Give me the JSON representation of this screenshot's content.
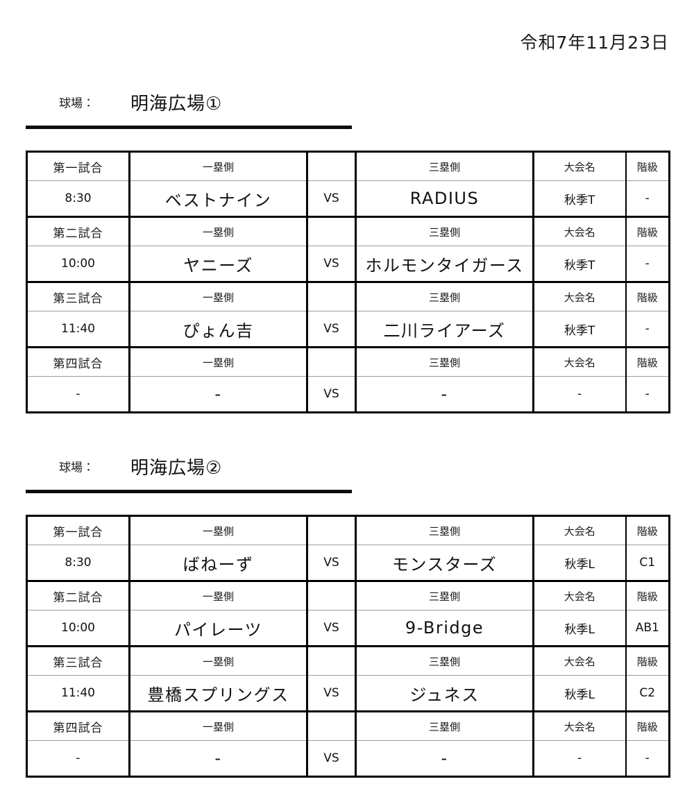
{
  "date": "令和7年11月23日",
  "venue_label": "球場：",
  "vs_label": "VS",
  "headers": {
    "first_base": "一塁側",
    "third_base": "三塁側",
    "tournament": "大会名",
    "class_name": "階級"
  },
  "venues": [
    {
      "name": "明海広場①",
      "games": [
        {
          "game_label": "第一試合",
          "time": "8:30",
          "first_base_team": "ベストナイン",
          "third_base_team": "RADIUS",
          "tournament": "秋季T",
          "class_name": "-"
        },
        {
          "game_label": "第二試合",
          "time": "10:00",
          "first_base_team": "ヤニーズ",
          "third_base_team": "ホルモンタイガース",
          "tournament": "秋季T",
          "class_name": "-"
        },
        {
          "game_label": "第三試合",
          "time": "11:40",
          "first_base_team": "ぴょん吉",
          "third_base_team": "二川ライアーズ",
          "tournament": "秋季T",
          "class_name": "-"
        },
        {
          "game_label": "第四試合",
          "time": "-",
          "first_base_team": "-",
          "third_base_team": "-",
          "tournament": "-",
          "class_name": "-"
        }
      ]
    },
    {
      "name": "明海広場②",
      "games": [
        {
          "game_label": "第一試合",
          "time": "8:30",
          "first_base_team": "ばねーず",
          "third_base_team": "モンスターズ",
          "tournament": "秋季L",
          "class_name": "C1"
        },
        {
          "game_label": "第二試合",
          "time": "10:00",
          "first_base_team": "パイレーツ",
          "third_base_team": "9-Bridge",
          "tournament": "秋季L",
          "class_name": "AB1"
        },
        {
          "game_label": "第三試合",
          "time": "11:40",
          "first_base_team": "豊橋スプリングス",
          "third_base_team": "ジュネス",
          "tournament": "秋季L",
          "class_name": "C2"
        },
        {
          "game_label": "第四試合",
          "time": "-",
          "first_base_team": "-",
          "third_base_team": "-",
          "tournament": "-",
          "class_name": "-"
        }
      ]
    }
  ]
}
